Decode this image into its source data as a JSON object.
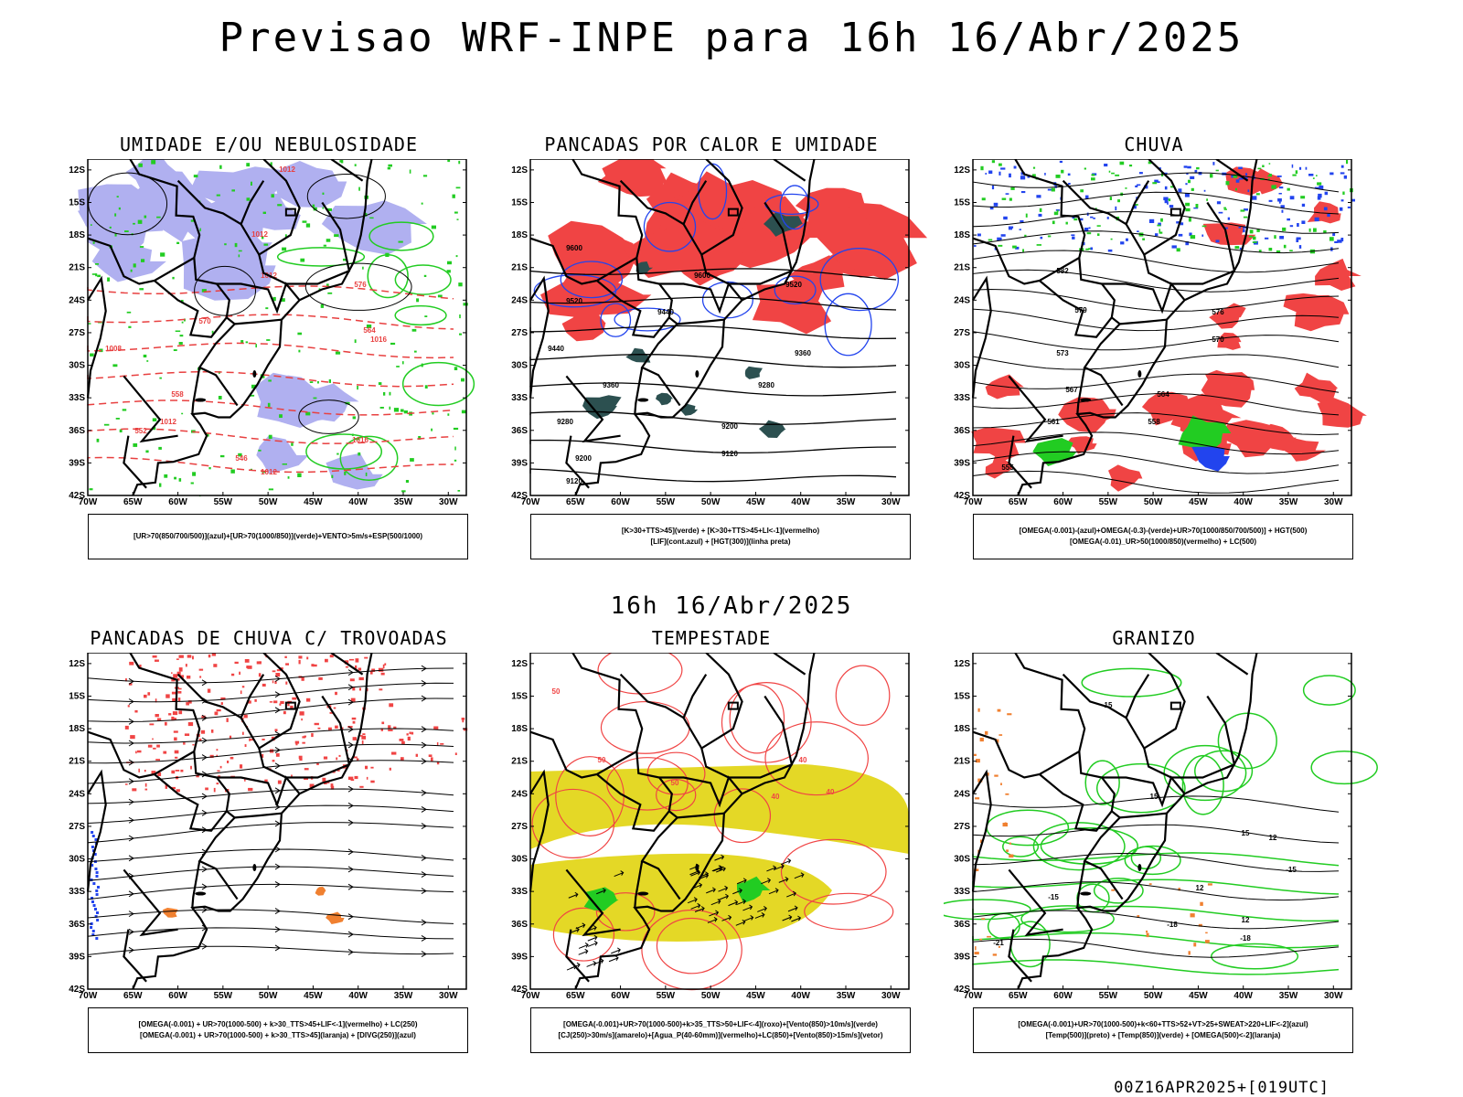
{
  "main_title": "Previsao WRF-INPE  para 16h 16/Abr/2025",
  "mid_title": "16h 16/Abr/2025",
  "footer": "00Z16APR2025+[019UTC]",
  "lat_labels": [
    "12S",
    "15S",
    "18S",
    "21S",
    "24S",
    "27S",
    "30S",
    "33S",
    "36S",
    "39S",
    "42S"
  ],
  "lon_labels": [
    "70W",
    "65W",
    "60W",
    "55W",
    "50W",
    "45W",
    "40W",
    "35W",
    "30W"
  ],
  "panels": [
    {
      "title": "UMIDADE E/OU NEBULOSIDADE",
      "legend": [
        "[UR>70(850/700/500)](azul)+[UR>70(1000/850)](verde)+VENTO>5m/s+ESP(500/1000)"
      ],
      "contour_labels": [
        "1012",
        "1012",
        "1012",
        "1008",
        "1016",
        "1012",
        "1016",
        "1012",
        "576",
        "570",
        "564",
        "558",
        "552",
        "546"
      ],
      "colors": {
        "fill1": "#b0b0f0",
        "line1": "#22cc22",
        "line2": "#e84040",
        "line3": "#000000"
      }
    },
    {
      "title": "PANCADAS POR CALOR E UMIDADE",
      "legend": [
        "[K>30+TTS>45](verde) + [K>30+TTS>45+LI<-1](vermelho)",
        "[LIF](cont.azul) + [HGT(300)](linha preta)"
      ],
      "contour_labels": [
        "9600",
        "9600",
        "9520",
        "9520",
        "9440",
        "9440",
        "9360",
        "9360",
        "9280",
        "9280",
        "9200",
        "9200",
        "9120",
        "9120"
      ],
      "colors": {
        "fill1": "#f04444",
        "fill2": "#2c5050",
        "line1": "#2244ee",
        "line3": "#000000"
      }
    },
    {
      "title": "CHUVA",
      "legend": [
        "[OMEGA(-0.001)-(azul)+OMEGA(-0.3)-(verde)+UR>70(1000/850/700/500)] + HGT(500)",
        "[OMEGA(-0.01)_UR>50(1000/850)(vermelho) + LC(500)"
      ],
      "contour_labels": [
        "582",
        "579",
        "576",
        "573",
        "570",
        "567",
        "564",
        "561",
        "558",
        "555"
      ],
      "colors": {
        "fill1": "#f04444",
        "fill2": "#22cc22",
        "fill3": "#2244ee",
        "line3": "#000000"
      }
    },
    {
      "title": "PANCADAS DE CHUVA C/ TROVOADAS",
      "legend": [
        "[OMEGA(-0.001) + UR>70(1000-500) + k>30_TTS>45+LIF<-1](vermelho) + LC(250)",
        "[OMEGA(-0.001) + UR>70(1000-500) + k>30_TTS>45](laranja) + [DIVG(250)](azul)"
      ],
      "contour_labels": [],
      "colors": {
        "fill1": "#f04444",
        "fill2": "#f08030",
        "fill3": "#2244ee",
        "line3": "#000000"
      }
    },
    {
      "title": "TEMPESTADE",
      "legend": [
        "[OMEGA(-0.001)+UR>70(1000-500)+k>35_TTS>50+LIF<-4](roxo)+[Vento(850)>10m/s](verde)",
        "[CJ(250)>30m/s](amarelo)+[Agua_P(40-60mm)](vermelho)+LC(850)+[Vento(850)>15m/s](vetor)"
      ],
      "contour_labels": [
        "50",
        "50",
        "40",
        "40",
        "40",
        "50"
      ],
      "colors": {
        "fill1": "#e4d826",
        "line2": "#f04444",
        "fill2": "#22cc22",
        "line3": "#000000"
      }
    },
    {
      "title": "GRANIZO",
      "legend": [
        "[OMEGA(-0.001)+UR>70(1000-500)+k<60+TTS>52+VT>25+SWEAT>220+LIF<-2](azul)",
        "[Temp(500)](preto) + [Temp(850)](verde) + [OMEGA(500)<-2](laranja)"
      ],
      "contour_labels": [
        "15",
        "15",
        "12",
        "12",
        "-15",
        "-15",
        "-18",
        "-18",
        "-21",
        "12",
        "15"
      ],
      "colors": {
        "line1": "#22cc22",
        "fill1": "#f08030",
        "line3": "#000000"
      }
    }
  ]
}
